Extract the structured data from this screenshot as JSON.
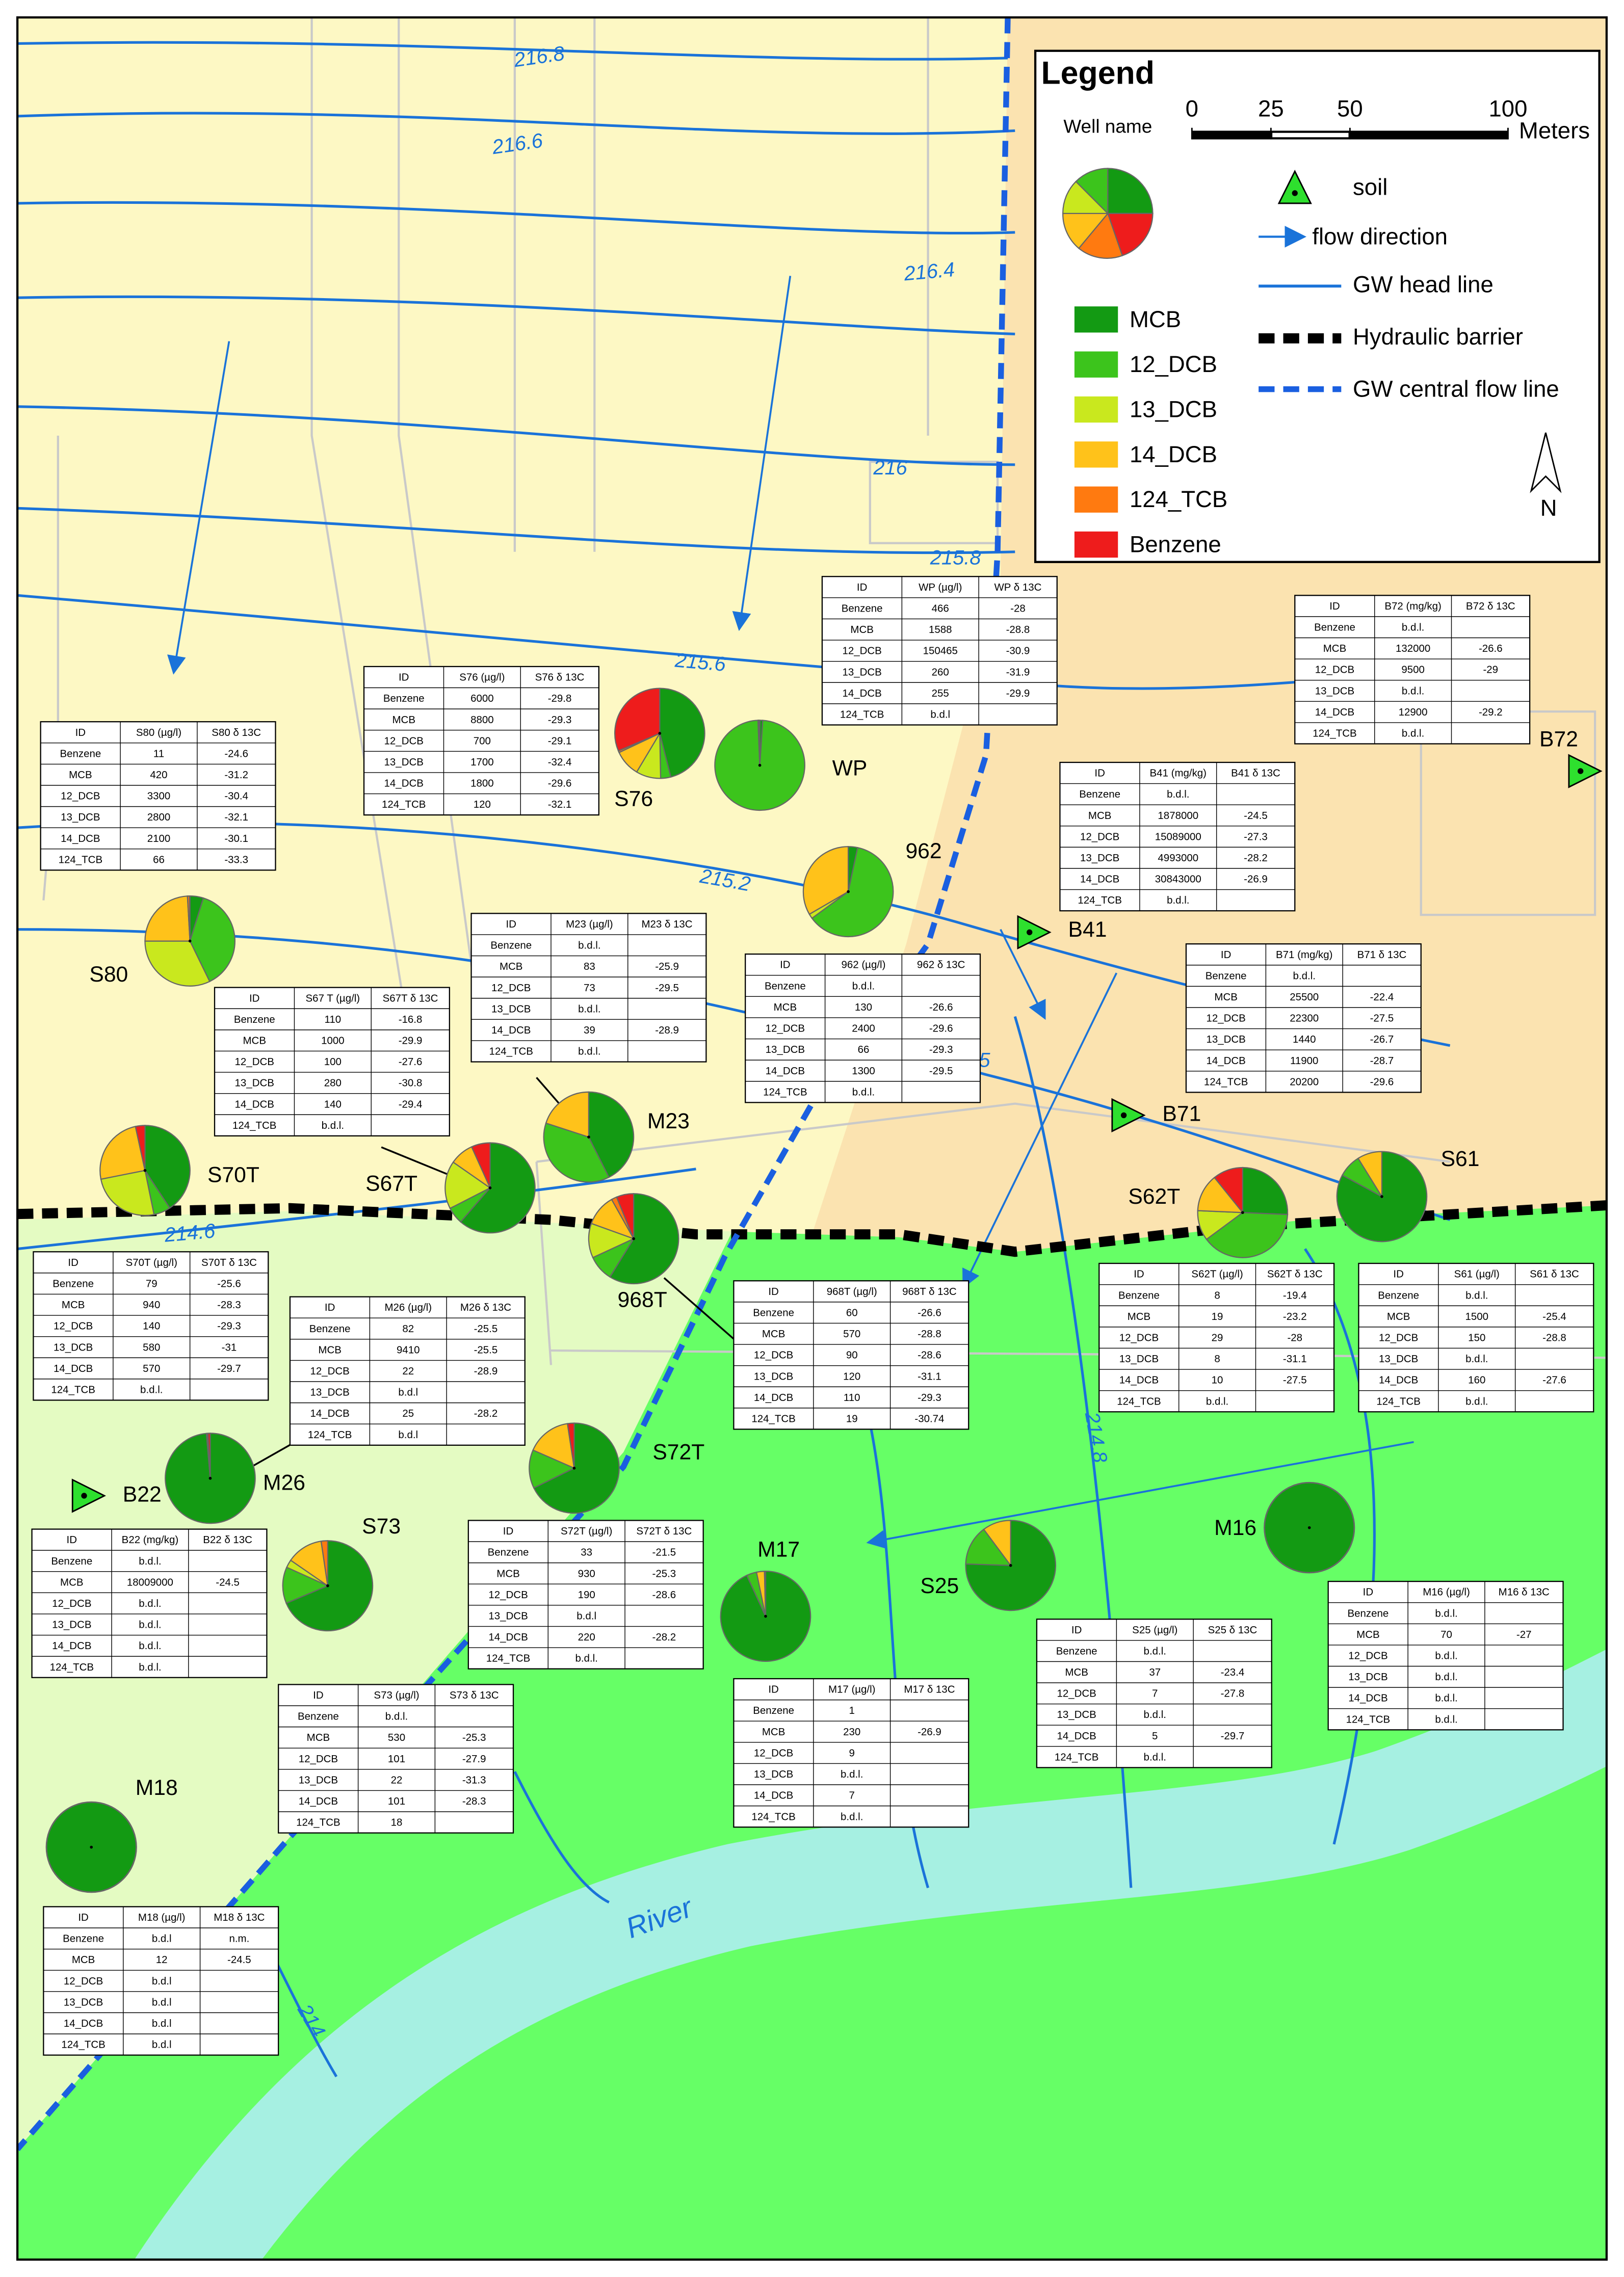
{
  "legend": {
    "title": "Legend",
    "well_name": "Well name",
    "scale_ticks": [
      0,
      25,
      50,
      100
    ],
    "scale_unit": "Meters",
    "compounds": [
      {
        "name": "MCB",
        "color": "#139a13"
      },
      {
        "name": "12_DCB",
        "color": "#3cc41c"
      },
      {
        "name": "13_DCB",
        "color": "#c9e81e"
      },
      {
        "name": "14_DCB",
        "color": "#ffc21a"
      },
      {
        "name": "124_TCB",
        "color": "#ff7a10"
      },
      {
        "name": "Benzene",
        "color": "#ee1c1c"
      }
    ],
    "symbols": [
      "soil",
      "flow direction",
      "GW head line",
      "Hydraulic barrier",
      "GW central flow line"
    ],
    "north": "N"
  },
  "contours": [
    216.8,
    216.6,
    216.4,
    216,
    215.8,
    215.6,
    215.2,
    214.6,
    214.8,
    214,
    5
  ],
  "river": "River",
  "wells": [
    {
      "name": "S80",
      "table": {
        "header": [
          "ID",
          "S80 (µg/l)",
          "S80 δ 13C"
        ],
        "rows": [
          [
            "Benzene",
            11,
            -24.6
          ],
          [
            "MCB",
            420,
            -31.2
          ],
          [
            "12_DCB",
            3300,
            -30.4
          ],
          [
            "13_DCB",
            2800,
            -32.1
          ],
          [
            "14_DCB",
            2100,
            -30.1
          ],
          [
            "124_TCB",
            66,
            -33.3
          ]
        ]
      }
    },
    {
      "name": "S76",
      "table": {
        "header": [
          "ID",
          "S76 (µg/l)",
          "S76 δ 13C"
        ],
        "rows": [
          [
            "Benzene",
            6000,
            -29.8
          ],
          [
            "MCB",
            8800,
            -29.3
          ],
          [
            "12_DCB",
            700,
            -29.1
          ],
          [
            "13_DCB",
            1700,
            -32.4
          ],
          [
            "14_DCB",
            1800,
            -29.6
          ],
          [
            "124_TCB",
            120,
            -32.1
          ]
        ]
      }
    },
    {
      "name": "WP",
      "table": {
        "header": [
          "ID",
          "WP (µg/l)",
          "WP δ 13C"
        ],
        "rows": [
          [
            "Benzene",
            466,
            -28
          ],
          [
            "MCB",
            1588,
            -28.8
          ],
          [
            "12_DCB",
            150465,
            -30.9
          ],
          [
            "13_DCB",
            260,
            -31.9
          ],
          [
            "14_DCB",
            255,
            -29.9
          ],
          [
            "124_TCB",
            "b.d.l",
            null
          ]
        ]
      }
    },
    {
      "name": "B72",
      "table": {
        "header": [
          "ID",
          "B72 (mg/kg)",
          "B72 δ 13C"
        ],
        "rows": [
          [
            "Benzene",
            "b.d.l.",
            null
          ],
          [
            "MCB",
            132000,
            -26.6
          ],
          [
            "12_DCB",
            9500,
            -29
          ],
          [
            "13_DCB",
            "b.d.l.",
            null
          ],
          [
            "14_DCB",
            12900,
            -29.2
          ],
          [
            "124_TCB",
            "b.d.l.",
            null
          ]
        ]
      }
    },
    {
      "name": "B41",
      "table": {
        "header": [
          "ID",
          "B41 (mg/kg)",
          "B41 δ 13C"
        ],
        "rows": [
          [
            "Benzene",
            "b.d.l.",
            null
          ],
          [
            "MCB",
            1878000,
            -24.5
          ],
          [
            "12_DCB",
            15089000,
            -27.3
          ],
          [
            "13_DCB",
            4993000,
            -28.2
          ],
          [
            "14_DCB",
            30843000,
            -26.9
          ],
          [
            "124_TCB",
            "b.d.l.",
            null
          ]
        ]
      }
    },
    {
      "name": "962",
      "table": {
        "header": [
          "ID",
          "962 (µg/l)",
          "962 δ 13C"
        ],
        "rows": [
          [
            "Benzene",
            "b.d.l.",
            null
          ],
          [
            "MCB",
            130,
            -26.6
          ],
          [
            "12_DCB",
            2400,
            -29.6
          ],
          [
            "13_DCB",
            66,
            -29.3
          ],
          [
            "14_DCB",
            1300,
            -29.5
          ],
          [
            "124_TCB",
            "b.d.l.",
            null
          ]
        ]
      }
    },
    {
      "name": "M23",
      "table": {
        "header": [
          "ID",
          "M23 (µg/l)",
          "M23 δ 13C"
        ],
        "rows": [
          [
            "Benzene",
            "b.d.l.",
            null
          ],
          [
            "MCB",
            83,
            -25.9
          ],
          [
            "12_DCB",
            73,
            -29.5
          ],
          [
            "13_DCB",
            "b.d.l.",
            null
          ],
          [
            "14_DCB",
            39,
            -28.9
          ],
          [
            "124_TCB",
            "b.d.l.",
            null
          ]
        ]
      }
    },
    {
      "name": "S67T",
      "table": {
        "header": [
          "ID",
          "S67 T (µg/l)",
          "S67T δ 13C"
        ],
        "rows": [
          [
            "Benzene",
            110,
            -16.8
          ],
          [
            "MCB",
            1000,
            -29.9
          ],
          [
            "12_DCB",
            100,
            -27.6
          ],
          [
            "13_DCB",
            280,
            -30.8
          ],
          [
            "14_DCB",
            140,
            -29.4
          ],
          [
            "124_TCB",
            "b.d.l.",
            null
          ]
        ]
      }
    },
    {
      "name": "B71",
      "table": {
        "header": [
          "ID",
          "B71 (mg/kg)",
          "B71 δ 13C"
        ],
        "rows": [
          [
            "Benzene",
            "b.d.l.",
            null
          ],
          [
            "MCB",
            25500,
            -22.4
          ],
          [
            "12_DCB",
            22300,
            -27.5
          ],
          [
            "13_DCB",
            1440,
            -26.7
          ],
          [
            "14_DCB",
            11900,
            -28.7
          ],
          [
            "124_TCB",
            20200,
            -29.6
          ]
        ]
      }
    },
    {
      "name": "S70T",
      "table": {
        "header": [
          "ID",
          "S70T (µg/l)",
          "S70T δ 13C"
        ],
        "rows": [
          [
            "Benzene",
            79,
            -25.6
          ],
          [
            "MCB",
            940,
            -28.3
          ],
          [
            "12_DCB",
            140,
            -29.3
          ],
          [
            "13_DCB",
            580,
            -31
          ],
          [
            "14_DCB",
            570,
            -29.7
          ],
          [
            "124_TCB",
            "b.d.l.",
            null
          ]
        ]
      }
    },
    {
      "name": "M26",
      "table": {
        "header": [
          "ID",
          "M26 (µg/l)",
          "M26 δ 13C"
        ],
        "rows": [
          [
            "Benzene",
            82,
            -25.5
          ],
          [
            "MCB",
            9410,
            -25.5
          ],
          [
            "12_DCB",
            22,
            -28.9
          ],
          [
            "13_DCB",
            "b.d.l",
            null
          ],
          [
            "14_DCB",
            25,
            -28.2
          ],
          [
            "124_TCB",
            "b.d.l",
            null
          ]
        ]
      }
    },
    {
      "name": "968T",
      "table": {
        "header": [
          "ID",
          "968T (µg/l)",
          "968T δ 13C"
        ],
        "rows": [
          [
            "Benzene",
            60,
            -26.6
          ],
          [
            "MCB",
            570,
            -28.8
          ],
          [
            "12_DCB",
            90,
            -28.6
          ],
          [
            "13_DCB",
            120,
            -31.1
          ],
          [
            "14_DCB",
            110,
            -29.3
          ],
          [
            "124_TCB",
            19,
            -30.74
          ]
        ]
      }
    },
    {
      "name": "S62T",
      "table": {
        "header": [
          "ID",
          "S62T (µg/l)",
          "S62T δ 13C"
        ],
        "rows": [
          [
            "Benzene",
            8,
            -19.4
          ],
          [
            "MCB",
            19,
            -23.2
          ],
          [
            "12_DCB",
            29,
            -28
          ],
          [
            "13_DCB",
            8,
            -31.1
          ],
          [
            "14_DCB",
            10,
            -27.5
          ],
          [
            "124_TCB",
            "b.d.l.",
            null
          ]
        ]
      }
    },
    {
      "name": "S61",
      "table": {
        "header": [
          "ID",
          "S61 (µg/l)",
          "S61 δ 13C"
        ],
        "rows": [
          [
            "Benzene",
            "b.d.l.",
            null
          ],
          [
            "MCB",
            1500,
            -25.4
          ],
          [
            "12_DCB",
            150,
            -28.8
          ],
          [
            "13_DCB",
            "b.d.l.",
            null
          ],
          [
            "14_DCB",
            160,
            -27.6
          ],
          [
            "124_TCB",
            "b.d.l.",
            null
          ]
        ]
      }
    },
    {
      "name": "B22",
      "table": {
        "header": [
          "ID",
          "B22 (mg/kg)",
          "B22 δ 13C"
        ],
        "rows": [
          [
            "Benzene",
            "b.d.l.",
            null
          ],
          [
            "MCB",
            18009000,
            -24.5
          ],
          [
            "12_DCB",
            "b.d.l.",
            null
          ],
          [
            "13_DCB",
            "b.d.l.",
            null
          ],
          [
            "14_DCB",
            "b.d.l.",
            null
          ],
          [
            "124_TCB",
            "b.d.l.",
            null
          ]
        ]
      }
    },
    {
      "name": "S72T",
      "table": {
        "header": [
          "ID",
          "S72T (µg/l)",
          "S72T δ 13C"
        ],
        "rows": [
          [
            "Benzene",
            33,
            -21.5
          ],
          [
            "MCB",
            930,
            -25.3
          ],
          [
            "12_DCB",
            190,
            -28.6
          ],
          [
            "13_DCB",
            "b.d.l",
            null
          ],
          [
            "14_DCB",
            220,
            -28.2
          ],
          [
            "124_TCB",
            "b.d.l.",
            null
          ]
        ]
      }
    },
    {
      "name": "S73",
      "table": {
        "header": [
          "ID",
          "S73 (µg/l)",
          "S73 δ 13C"
        ],
        "rows": [
          [
            "Benzene",
            "b.d.l.",
            null
          ],
          [
            "MCB",
            530,
            -25.3
          ],
          [
            "12_DCB",
            101,
            -27.9
          ],
          [
            "13_DCB",
            22,
            -31.3
          ],
          [
            "14_DCB",
            101,
            -28.3
          ],
          [
            "124_TCB",
            18,
            null
          ]
        ]
      }
    },
    {
      "name": "M17",
      "table": {
        "header": [
          "ID",
          "M17 (µg/l)",
          "M17 δ 13C"
        ],
        "rows": [
          [
            "Benzene",
            1,
            null
          ],
          [
            "MCB",
            230,
            -26.9
          ],
          [
            "12_DCB",
            9,
            null
          ],
          [
            "13_DCB",
            "b.d.l.",
            null
          ],
          [
            "14_DCB",
            7,
            null
          ],
          [
            "124_TCB",
            "b.d.l.",
            null
          ]
        ]
      }
    },
    {
      "name": "S25",
      "table": {
        "header": [
          "ID",
          "S25 (µg/l)",
          "S25 δ 13C"
        ],
        "rows": [
          [
            "Benzene",
            "b.d.l.",
            null
          ],
          [
            "MCB",
            37,
            -23.4
          ],
          [
            "12_DCB",
            7,
            -27.8
          ],
          [
            "13_DCB",
            "b.d.l.",
            null
          ],
          [
            "14_DCB",
            5,
            -29.7
          ],
          [
            "124_TCB",
            "b.d.l.",
            null
          ]
        ]
      }
    },
    {
      "name": "M16",
      "table": {
        "header": [
          "ID",
          "M16 (µg/l)",
          "M16 δ 13C"
        ],
        "rows": [
          [
            "Benzene",
            "b.d.l.",
            null
          ],
          [
            "MCB",
            70,
            -27
          ],
          [
            "12_DCB",
            "b.d.l.",
            null
          ],
          [
            "13_DCB",
            "b.d.l.",
            null
          ],
          [
            "14_DCB",
            "b.d.l.",
            null
          ],
          [
            "124_TCB",
            "b.d.l.",
            null
          ]
        ]
      }
    },
    {
      "name": "M18",
      "table": {
        "header": [
          "ID",
          "M18 (µg/l)",
          "M18 δ 13C"
        ],
        "rows": [
          [
            "Benzene",
            "b.d.l",
            "n.m."
          ],
          [
            "MCB",
            12,
            -24.5
          ],
          [
            "12_DCB",
            "b.d.l",
            null
          ],
          [
            "13_DCB",
            "b.d.l",
            null
          ],
          [
            "14_DCB",
            "b.d.l",
            null
          ],
          [
            "124_TCB",
            "b.d.l",
            null
          ]
        ]
      }
    }
  ]
}
